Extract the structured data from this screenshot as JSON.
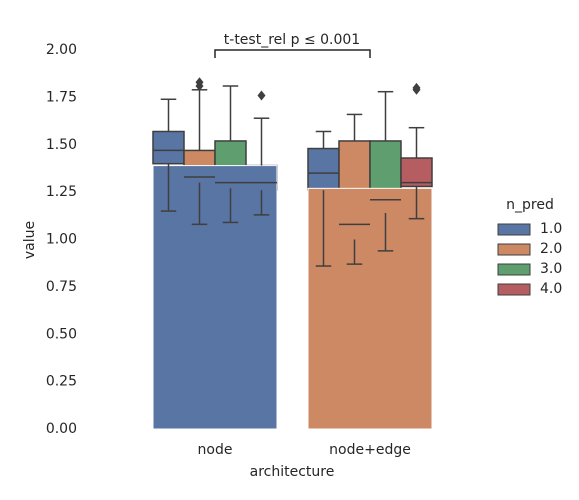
{
  "chart_data": {
    "type": "bar",
    "categories": [
      "node",
      "node+edge"
    ],
    "values": [
      1.39,
      1.27
    ],
    "colors": [
      "#5975a4",
      "#cc8963"
    ],
    "xlabel": "architecture",
    "ylabel": "value",
    "ylim": [
      0,
      2
    ],
    "yticks": [
      {
        "value": 0,
        "label": "0.00"
      },
      {
        "value": 0.25,
        "label": "0.25"
      },
      {
        "value": 0.5,
        "label": "0.50"
      },
      {
        "value": 0.75,
        "label": "0.75"
      },
      {
        "value": 1,
        "label": "1.00"
      },
      {
        "value": 1.25,
        "label": "1.25"
      },
      {
        "value": 1.5,
        "label": "1.50"
      },
      {
        "value": 1.75,
        "label": "1.75"
      },
      {
        "value": 2,
        "label": "2.00"
      }
    ],
    "annotation": "t-test_rel p ≤ 0.001",
    "legend_title": "n_pred",
    "legend_position": "right",
    "series": [
      {
        "name": "1.0",
        "color": "#5975a4",
        "q1": [
          1.4,
          1.26
        ],
        "median": [
          1.47,
          1.35
        ],
        "q3": [
          1.57,
          1.48
        ],
        "whislo": [
          1.15,
          0.86
        ],
        "whishi": [
          1.74,
          1.57
        ],
        "fliers": [
          [],
          []
        ]
      },
      {
        "name": "2.0",
        "color": "#cc8963",
        "q1": [
          1.3,
          1.0
        ],
        "median": [
          1.33,
          1.08
        ],
        "q3": [
          1.47,
          1.52
        ],
        "whislo": [
          1.08,
          0.87
        ],
        "whishi": [
          1.79,
          1.66
        ],
        "fliers": [
          [
            1.81,
            1.83
          ],
          []
        ]
      },
      {
        "name": "3.0",
        "color": "#5f9e6e",
        "q1": [
          1.27,
          1.14
        ],
        "median": [
          1.3,
          1.21
        ],
        "q3": [
          1.52,
          1.52
        ],
        "whislo": [
          1.09,
          0.94
        ],
        "whishi": [
          1.81,
          1.78
        ],
        "fliers": [
          [],
          []
        ]
      },
      {
        "name": "4.0",
        "color": "#b55d60",
        "q1": [
          1.26,
          1.28
        ],
        "median": [
          1.3,
          1.3
        ],
        "q3": [
          1.39,
          1.43
        ],
        "whislo": [
          1.13,
          1.11
        ],
        "whishi": [
          1.64,
          1.59
        ],
        "fliers": [
          [
            1.76
          ],
          [
            1.79,
            1.8
          ]
        ]
      }
    ]
  }
}
